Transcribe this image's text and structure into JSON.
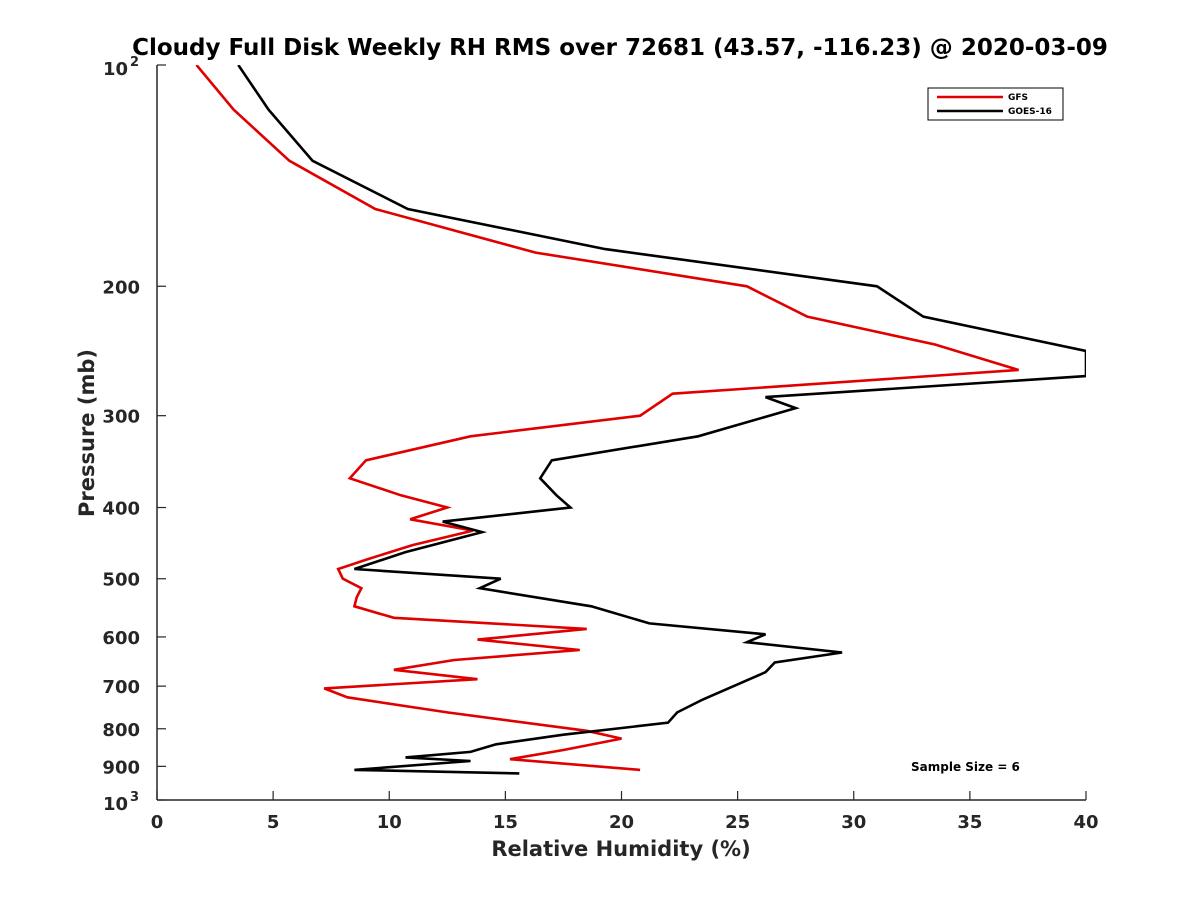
{
  "chart_data": {
    "type": "line",
    "title": "Cloudy Full Disk Weekly RH RMS over 72681 (43.57, -116.23) @ 2020-03-09",
    "xlabel": "Relative Humidity (%)",
    "ylabel": "Pressure (mb)",
    "xlim": [
      0,
      40
    ],
    "ylim": [
      100,
      1000
    ],
    "y_scale": "log",
    "y_reversed": true,
    "x_ticks": [
      "0",
      "5",
      "10",
      "15",
      "20",
      "25",
      "30",
      "35",
      "40"
    ],
    "y_ticks": [
      {
        "value": 100,
        "base": "10",
        "exp": "2"
      },
      {
        "value": 200,
        "label": "200"
      },
      {
        "value": 300,
        "label": "300"
      },
      {
        "value": 400,
        "label": "400"
      },
      {
        "value": 500,
        "label": "500"
      },
      {
        "value": 600,
        "label": "600"
      },
      {
        "value": 700,
        "label": "700"
      },
      {
        "value": 800,
        "label": "800"
      },
      {
        "value": 900,
        "label": "900"
      },
      {
        "value": 1000,
        "base": "10",
        "exp": "3"
      }
    ],
    "legend_position": "top-right",
    "annotation": "Sample Size = 6",
    "series": [
      {
        "name": "GFS",
        "color": "#e00000",
        "points": [
          [
            1.7,
            100
          ],
          [
            3.3,
            115
          ],
          [
            5.7,
            135
          ],
          [
            9.4,
            157
          ],
          [
            16.3,
            180
          ],
          [
            25.4,
            200
          ],
          [
            28.0,
            220
          ],
          [
            33.5,
            240
          ],
          [
            37.1,
            260
          ],
          [
            22.2,
            280
          ],
          [
            20.8,
            300
          ],
          [
            13.5,
            320
          ],
          [
            9.0,
            345
          ],
          [
            8.3,
            365
          ],
          [
            10.5,
            385
          ],
          [
            12.5,
            400
          ],
          [
            10.9,
            415
          ],
          [
            13.6,
            430
          ],
          [
            11.0,
            450
          ],
          [
            9.1,
            470
          ],
          [
            7.8,
            485
          ],
          [
            8.0,
            500
          ],
          [
            8.8,
            515
          ],
          [
            8.6,
            530
          ],
          [
            8.5,
            545
          ],
          [
            10.2,
            565
          ],
          [
            18.5,
            585
          ],
          [
            13.8,
            605
          ],
          [
            18.2,
            625
          ],
          [
            12.8,
            645
          ],
          [
            10.2,
            665
          ],
          [
            13.8,
            685
          ],
          [
            7.2,
            705
          ],
          [
            8.2,
            725
          ],
          [
            12.5,
            760
          ],
          [
            18.5,
            805
          ],
          [
            20.0,
            825
          ],
          [
            17.5,
            855
          ],
          [
            15.2,
            880
          ],
          [
            20.8,
            910
          ]
        ]
      },
      {
        "name": "GOES-16",
        "color": "#000000",
        "points": [
          [
            3.5,
            100
          ],
          [
            4.8,
            115
          ],
          [
            6.7,
            135
          ],
          [
            10.8,
            157
          ],
          [
            19.3,
            178
          ],
          [
            31.0,
            200
          ],
          [
            33.0,
            220
          ],
          [
            40.0,
            245
          ],
          [
            40.0,
            265
          ],
          [
            26.2,
            283
          ],
          [
            27.5,
            293
          ],
          [
            23.3,
            320
          ],
          [
            17.0,
            345
          ],
          [
            16.5,
            365
          ],
          [
            17.2,
            385
          ],
          [
            17.8,
            400
          ],
          [
            12.3,
            418
          ],
          [
            14.0,
            432
          ],
          [
            10.7,
            460
          ],
          [
            8.5,
            485
          ],
          [
            14.8,
            500
          ],
          [
            13.9,
            515
          ],
          [
            18.7,
            545
          ],
          [
            21.2,
            575
          ],
          [
            26.2,
            595
          ],
          [
            25.4,
            610
          ],
          [
            29.5,
            630
          ],
          [
            26.6,
            650
          ],
          [
            26.2,
            670
          ],
          [
            24.6,
            705
          ],
          [
            23.5,
            730
          ],
          [
            22.4,
            760
          ],
          [
            22.0,
            785
          ],
          [
            17.5,
            815
          ],
          [
            14.6,
            840
          ],
          [
            13.5,
            860
          ],
          [
            10.7,
            875
          ],
          [
            13.5,
            885
          ],
          [
            8.5,
            910
          ],
          [
            15.6,
            920
          ]
        ]
      }
    ]
  }
}
